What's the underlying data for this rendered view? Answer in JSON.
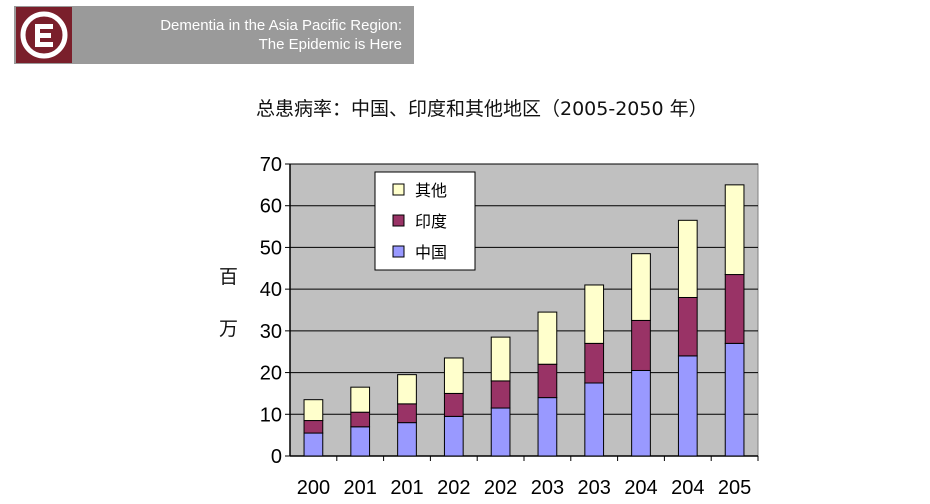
{
  "header": {
    "logo_icon": "e-logo-icon",
    "title_line1": "Dementia in the Asia Pacific Region:",
    "title_line2": "The Epidemic is Here"
  },
  "chart_data": {
    "type": "bar",
    "stacked": true,
    "title": "总患病率：中国、印度和其他地区（2005-2050 年）",
    "ylabel_char1": "百",
    "ylabel_char2": "万",
    "categories": [
      "200",
      "201",
      "201",
      "202",
      "202",
      "203",
      "203",
      "204",
      "204",
      "205"
    ],
    "series": [
      {
        "name": "中国",
        "color": "#9999ff",
        "values": [
          5.5,
          7,
          8,
          9.5,
          11.5,
          14,
          17.5,
          20.5,
          24,
          27
        ]
      },
      {
        "name": "印度",
        "color": "#993366",
        "values": [
          3,
          3.5,
          4.5,
          5.5,
          6.5,
          8,
          9.5,
          12,
          14,
          16.5
        ]
      },
      {
        "name": "其他",
        "color": "#ffffcc",
        "values": [
          5,
          6,
          7,
          8.5,
          10.5,
          12.5,
          14,
          16,
          18.5,
          21.5
        ]
      }
    ],
    "ylim": [
      0,
      70
    ],
    "yticks": [
      "0",
      "10",
      "20",
      "30",
      "40",
      "50",
      "60",
      "70"
    ],
    "grid": true,
    "legend_position": "top-left",
    "plot_background": "#c0c0c0"
  }
}
